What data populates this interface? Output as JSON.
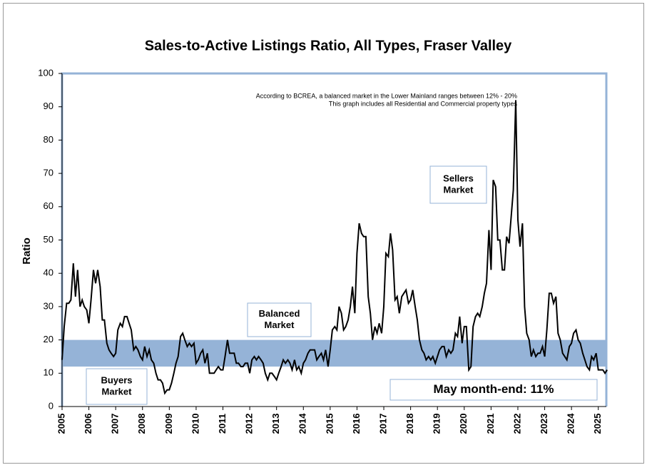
{
  "chart_data": {
    "type": "line",
    "title": "Sales-to-Active Listings Ratio, All Types, Fraser Valley",
    "ylabel": "Ratio",
    "notes": [
      "According to BCREA, a balanced market in the Lower Mainland ranges between 12% - 20%",
      "This graph includes all Residential and Commercial property types"
    ],
    "balanced_band": {
      "from": 12,
      "to": 20,
      "color": "#95b3d7"
    },
    "annotations": [
      {
        "lines": [
          "Sellers",
          "Market"
        ]
      },
      {
        "lines": [
          "Balanced",
          "Market"
        ]
      },
      {
        "lines": [
          "Buyers",
          "Market"
        ]
      },
      {
        "lines": [
          "May month-end: 11%"
        ]
      }
    ],
    "xlim": [
      2005,
      2025.3
    ],
    "xticks": [
      2005,
      2006,
      2007,
      2008,
      2009,
      2010,
      2011,
      2012,
      2013,
      2014,
      2015,
      2016,
      2017,
      2018,
      2019,
      2020,
      2021,
      2022,
      2023,
      2024,
      2025
    ],
    "ylim": [
      0,
      100
    ],
    "yticks": [
      0,
      10,
      20,
      30,
      40,
      50,
      60,
      70,
      80,
      90,
      100
    ],
    "x": [
      2005,
      2005.08,
      2005.17,
      2005.25,
      2005.33,
      2005.42,
      2005.5,
      2005.58,
      2005.67,
      2005.75,
      2005.83,
      2005.92,
      2006,
      2006.08,
      2006.17,
      2006.25,
      2006.33,
      2006.42,
      2006.5,
      2006.58,
      2006.67,
      2006.75,
      2006.83,
      2006.92,
      2007,
      2007.08,
      2007.17,
      2007.25,
      2007.33,
      2007.42,
      2007.5,
      2007.58,
      2007.67,
      2007.75,
      2007.83,
      2007.92,
      2008,
      2008.08,
      2008.17,
      2008.25,
      2008.33,
      2008.42,
      2008.5,
      2008.58,
      2008.67,
      2008.75,
      2008.83,
      2008.92,
      2009,
      2009.08,
      2009.17,
      2009.25,
      2009.33,
      2009.42,
      2009.5,
      2009.58,
      2009.67,
      2009.75,
      2009.83,
      2009.92,
      2010,
      2010.08,
      2010.17,
      2010.25,
      2010.33,
      2010.42,
      2010.5,
      2010.58,
      2010.67,
      2010.75,
      2010.83,
      2010.92,
      2011,
      2011.08,
      2011.17,
      2011.25,
      2011.33,
      2011.42,
      2011.5,
      2011.58,
      2011.67,
      2011.75,
      2011.83,
      2011.92,
      2012,
      2012.08,
      2012.17,
      2012.25,
      2012.33,
      2012.42,
      2012.5,
      2012.58,
      2012.67,
      2012.75,
      2012.83,
      2012.92,
      2013,
      2013.08,
      2013.17,
      2013.25,
      2013.33,
      2013.42,
      2013.5,
      2013.58,
      2013.67,
      2013.75,
      2013.83,
      2013.92,
      2014,
      2014.08,
      2014.17,
      2014.25,
      2014.33,
      2014.42,
      2014.5,
      2014.58,
      2014.67,
      2014.75,
      2014.83,
      2014.92,
      2015,
      2015.08,
      2015.17,
      2015.25,
      2015.33,
      2015.42,
      2015.5,
      2015.58,
      2015.67,
      2015.75,
      2015.83,
      2015.92,
      2016,
      2016.08,
      2016.17,
      2016.25,
      2016.33,
      2016.42,
      2016.5,
      2016.58,
      2016.67,
      2016.75,
      2016.83,
      2016.92,
      2017,
      2017.08,
      2017.17,
      2017.25,
      2017.33,
      2017.42,
      2017.5,
      2017.58,
      2017.67,
      2017.75,
      2017.83,
      2017.92,
      2018,
      2018.08,
      2018.17,
      2018.25,
      2018.33,
      2018.42,
      2018.5,
      2018.58,
      2018.67,
      2018.75,
      2018.83,
      2018.92,
      2019,
      2019.08,
      2019.17,
      2019.25,
      2019.33,
      2019.42,
      2019.5,
      2019.58,
      2019.67,
      2019.75,
      2019.83,
      2019.92,
      2020,
      2020.08,
      2020.17,
      2020.25,
      2020.33,
      2020.42,
      2020.5,
      2020.58,
      2020.67,
      2020.75,
      2020.83,
      2020.92,
      2021,
      2021.08,
      2021.17,
      2021.25,
      2021.33,
      2021.42,
      2021.5,
      2021.58,
      2021.67,
      2021.75,
      2021.83,
      2021.92,
      2022,
      2022.08,
      2022.17,
      2022.25,
      2022.33,
      2022.42,
      2022.5,
      2022.58,
      2022.67,
      2022.75,
      2022.83,
      2022.92,
      2023,
      2023.08,
      2023.17,
      2023.25,
      2023.33,
      2023.42,
      2023.5,
      2023.58,
      2023.67,
      2023.75,
      2023.83,
      2023.92,
      2024,
      2024.08,
      2024.17,
      2024.25,
      2024.33,
      2024.42,
      2024.5,
      2024.58,
      2024.67,
      2024.75,
      2024.83,
      2024.92,
      2025,
      2025.08,
      2025.17,
      2025.25,
      2025.33
    ],
    "series": [
      {
        "name": "Ratio",
        "color": "#000000",
        "values": [
          14,
          24,
          31,
          31,
          32,
          43,
          33,
          41,
          30,
          32,
          30,
          29,
          25,
          32,
          41,
          37,
          41,
          36,
          26,
          26,
          19,
          17,
          16,
          15,
          16,
          23,
          25,
          24,
          27,
          27,
          25,
          23,
          17,
          18,
          17,
          15,
          14,
          18,
          15,
          17,
          14,
          13,
          10,
          8,
          8,
          7,
          4,
          5,
          5,
          7,
          10,
          13,
          15,
          21,
          22,
          20,
          18,
          19,
          18,
          19,
          13,
          14,
          16,
          17,
          13,
          16,
          10,
          10,
          10,
          11,
          12,
          11,
          11,
          15,
          20,
          16,
          16,
          16,
          13,
          13,
          12,
          12,
          13,
          13,
          10,
          14,
          15,
          14,
          15,
          14,
          13,
          10,
          8,
          10,
          10,
          9,
          8,
          10,
          12,
          14,
          13,
          14,
          13,
          11,
          14,
          11,
          12,
          10,
          13,
          14,
          16,
          17,
          17,
          17,
          14,
          15,
          16,
          14,
          17,
          12,
          17,
          23,
          24,
          23,
          30,
          28,
          23,
          24,
          26,
          30,
          36,
          28,
          46,
          55,
          52,
          51,
          51,
          33,
          28,
          20,
          24,
          22,
          25,
          22,
          30,
          46,
          45,
          52,
          47,
          32,
          33,
          28,
          33,
          34,
          35,
          31,
          32,
          35,
          30,
          26,
          20,
          17,
          16,
          14,
          15,
          14,
          15,
          13,
          15,
          17,
          18,
          18,
          15,
          17,
          16,
          17,
          22,
          21,
          27,
          19,
          24,
          24,
          11,
          12,
          24,
          27,
          28,
          27,
          30,
          34,
          37,
          53,
          41,
          68,
          66,
          50,
          50,
          41,
          41,
          51,
          49,
          57,
          65,
          92,
          56,
          48,
          55,
          30,
          22,
          20,
          15,
          17,
          15,
          16,
          16,
          18,
          15,
          23,
          34,
          34,
          31,
          33,
          22,
          20,
          16,
          15,
          14,
          18,
          19,
          22,
          23,
          20,
          19,
          16,
          14,
          12,
          11,
          15,
          14,
          16,
          11,
          11,
          11,
          10,
          11
        ]
      }
    ]
  }
}
